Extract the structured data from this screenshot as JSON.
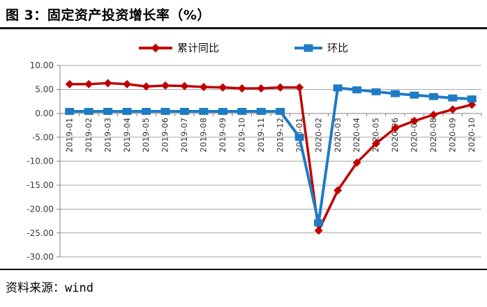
{
  "figure": {
    "title": "图 3：固定资产投资增长率（%）",
    "source_label": "资料来源：",
    "source_value": "wind"
  },
  "colors": {
    "series1": "#C00000",
    "series2": "#1F7BC4",
    "gridline": "#A6A6A6",
    "axis": "#808080",
    "tick_text": "#3A3A3A",
    "rule": "#141414"
  },
  "chart_data": {
    "type": "line",
    "title": "图 3：固定资产投资增长率（%）",
    "xlabel": "",
    "ylabel": "",
    "ylim": [
      -30,
      10
    ],
    "ytick_step": 5,
    "ytick_labels": [
      "10.00",
      "5.00",
      "0.00",
      "-5.00",
      "-10.00",
      "-15.00",
      "-20.00",
      "-25.00",
      "-30.00"
    ],
    "grid": true,
    "legend_position": "top",
    "categories": [
      "2019-01",
      "2019-02",
      "2019-03",
      "2019-04",
      "2019-05",
      "2019-06",
      "2019-07",
      "2019-08",
      "2019-09",
      "2019-10",
      "2019-11",
      "2019-12",
      "2020-01",
      "2020-02",
      "2020-03",
      "2020-04",
      "2020-05",
      "2020-06",
      "2020-07",
      "2020-08",
      "2020-09",
      "2020-10"
    ],
    "series": [
      {
        "name": "累计同比",
        "marker": "diamond",
        "color": "#C00000",
        "values": [
          6.1,
          6.1,
          6.3,
          6.1,
          5.6,
          5.8,
          5.7,
          5.5,
          5.4,
          5.2,
          5.2,
          5.4,
          5.4,
          -24.5,
          -16.1,
          -10.3,
          -6.3,
          -3.1,
          -1.6,
          -0.3,
          0.8,
          1.8
        ]
      },
      {
        "name": "环比",
        "marker": "square",
        "color": "#1F7BC4",
        "values": [
          0.4,
          0.4,
          0.4,
          0.4,
          0.4,
          0.4,
          0.4,
          0.4,
          0.4,
          0.4,
          0.4,
          0.4,
          -5.0,
          -22.9,
          5.3,
          4.9,
          4.5,
          4.1,
          3.8,
          3.5,
          3.2,
          3.0
        ]
      }
    ]
  }
}
